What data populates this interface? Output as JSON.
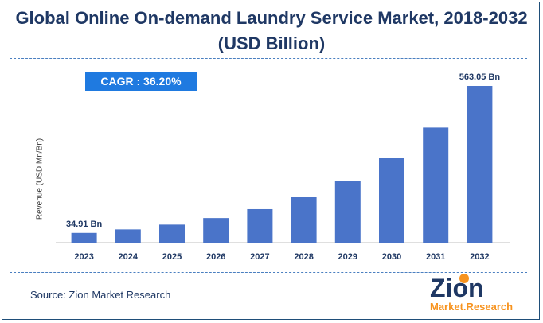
{
  "title_line1": "Global Online On-demand Laundry Service Market, 2018-2032",
  "title_line2": "(USD Billion)",
  "cagr_label": "CAGR :  36.20%",
  "source": "Source: Zion Market Research",
  "logo": {
    "word1": "Zion",
    "word2": "Market.Research"
  },
  "colors": {
    "bar": "#4a74c9",
    "title": "#1f3864",
    "cagr_bg": "#1f7ae0"
  },
  "chart_data": {
    "type": "bar",
    "title": "Global Online On-demand Laundry Service Market, 2018-2032 (USD Billion)",
    "ylabel": "Revenue (USD Mn/Bn)",
    "xlabel": "",
    "categories": [
      "2023",
      "2024",
      "2025",
      "2026",
      "2027",
      "2028",
      "2029",
      "2030",
      "2031",
      "2032"
    ],
    "values": [
      34.91,
      47.5,
      64.7,
      88.2,
      120.1,
      163.6,
      222.8,
      303.4,
      413.3,
      563.05
    ],
    "data_labels": [
      {
        "index": 0,
        "text": "34.91 Bn"
      },
      {
        "index": 9,
        "text": "563.05 Bn"
      }
    ],
    "ylim": [
      0,
      600
    ],
    "grid": false,
    "legend": "none"
  }
}
